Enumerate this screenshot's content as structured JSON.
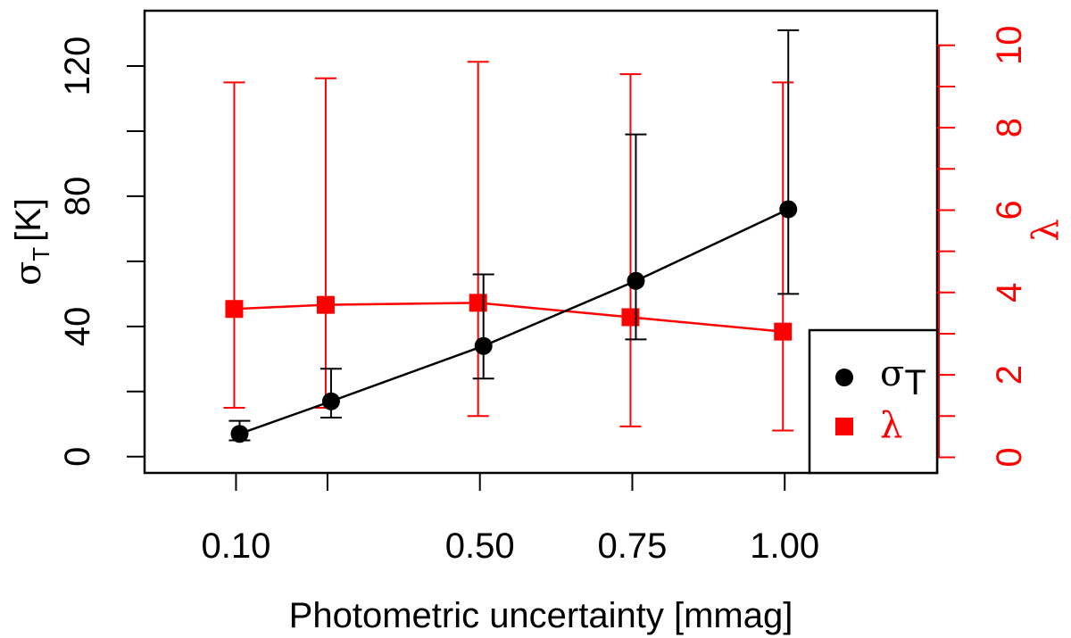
{
  "chart_data": {
    "type": "line",
    "xlabel": "Photometric uncertainty [mmag]",
    "ylabel_left": {
      "symbol": "σ",
      "subscript": "T",
      "unit": "[K]"
    },
    "ylabel_right": "λ",
    "x_ticks": [
      {
        "value": 0.1,
        "label": "0.10"
      },
      {
        "value": 0.5,
        "label": "0.50"
      },
      {
        "value": 0.75,
        "label": "0.75"
      },
      {
        "value": 1.0,
        "label": "1.00"
      }
    ],
    "x_minor_ticks": [
      0.25
    ],
    "xlim": [
      -0.05,
      1.25
    ],
    "y_left": {
      "ticks": [
        0,
        40,
        80,
        120
      ],
      "minor_ticks": [
        20,
        60,
        100
      ],
      "ylim": [
        -5,
        137
      ]
    },
    "y_right": {
      "ticks": [
        0,
        2,
        4,
        6,
        8,
        10
      ],
      "minor_ticks": [
        1,
        3,
        5,
        7,
        9
      ],
      "ylim": [
        -0.38,
        10.84
      ]
    },
    "series": [
      {
        "name": "σ",
        "name_subscript": "T",
        "axis": "left",
        "color": "#000000",
        "marker": "circle",
        "x": [
          0.1,
          0.25,
          0.5,
          0.75,
          1.0
        ],
        "y": [
          7,
          17,
          34,
          54,
          76
        ],
        "err_low": [
          5,
          12,
          24,
          36,
          50
        ],
        "err_high": [
          11,
          27,
          56,
          99,
          131
        ]
      },
      {
        "name": "λ",
        "axis": "right",
        "color": "#ff0000",
        "marker": "square",
        "x": [
          0.1,
          0.25,
          0.5,
          0.75,
          1.0
        ],
        "y": [
          3.6,
          3.7,
          3.75,
          3.4,
          3.05
        ],
        "err_low": [
          1.2,
          1.2,
          1.0,
          0.75,
          0.65
        ],
        "err_high": [
          9.1,
          9.2,
          9.6,
          9.3,
          9.1
        ]
      }
    ],
    "legend": {
      "placement": "bottom-right"
    }
  }
}
